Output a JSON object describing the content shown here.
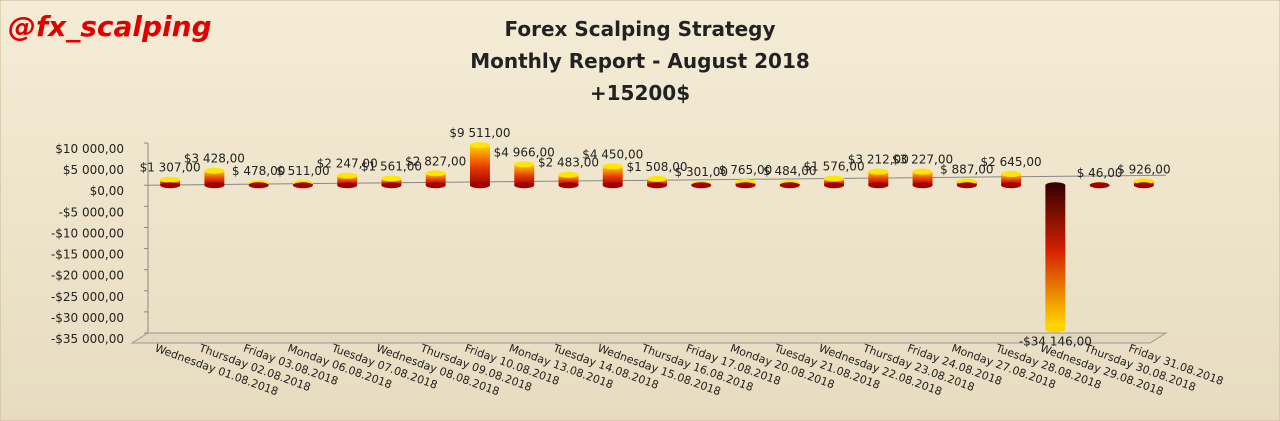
{
  "watermark": "@fx_scalping",
  "chart_data": {
    "type": "bar",
    "title": [
      "Forex Scalping Strategy",
      "Monthly Report - August 2018",
      "+15200$"
    ],
    "categories": [
      "Wednesday 01.08.2018",
      "Thursday 02.08.2018",
      "Friday 03.08.2018",
      "Monday 06.08.2018",
      "Tuesday 07.08.2018",
      "Wednesday 08.08.2018",
      "Thursday 09.08.2018",
      "Friday 10.08.2018",
      "Monday 13.08.2018",
      "Tuesday 14.08.2018",
      "Wednesday 15.08.2018",
      "Thursday 16.08.2018",
      "Friday 17.08.2018",
      "Monday 20.08.2018",
      "Tuesday 21.08.2018",
      "Wednesday 22.08.2018",
      "Thursday 23.08.2018",
      "Friday 24.08.2018",
      "Monday 27.08.2018",
      "Tuesday 28.08.2018",
      "Wednesday 29.08.2018",
      "Thursday 30.08.2018",
      "Friday 31.08.2018"
    ],
    "values": [
      1307,
      3428,
      478,
      511,
      2247,
      1561,
      2827,
      9511,
      4966,
      2483,
      4450,
      1508,
      301,
      765,
      484,
      1576,
      3212,
      3227,
      887,
      2645,
      -34146,
      46,
      926
    ],
    "value_labels": [
      "$1 307,00",
      "$3 428,00",
      "$ 478,00",
      "$ 511,00",
      "$2 247,00",
      "$1 561,00",
      "$2 827,00",
      "$9 511,00",
      "$4 966,00",
      "$2 483,00",
      "$4 450,00",
      "$1 508,00",
      "$ 301,00",
      "$ 765,00",
      "$ 484,00",
      "$1 576,00",
      "$3 212,00",
      "$3 227,00",
      "$ 887,00",
      "$2 645,00",
      "-$34 146,00",
      "$ 46,00",
      "$ 926,00"
    ],
    "ylim": [
      -35000,
      10000
    ],
    "yticks": [
      {
        "value": -35000,
        "label": "-$35 000,00"
      },
      {
        "value": -30000,
        "label": "-$30 000,00"
      },
      {
        "value": -25000,
        "label": "-$25 000,00"
      },
      {
        "value": -20000,
        "label": "-$20 000,00"
      },
      {
        "value": -15000,
        "label": "-$15 000,00"
      },
      {
        "value": -10000,
        "label": "-$10 000,00"
      },
      {
        "value": -5000,
        "label": "-$5 000,00"
      },
      {
        "value": 0,
        "label": "$0,00"
      },
      {
        "value": 5000,
        "label": "$5 000,00"
      },
      {
        "value": 10000,
        "label": "$10 000,00"
      }
    ]
  }
}
